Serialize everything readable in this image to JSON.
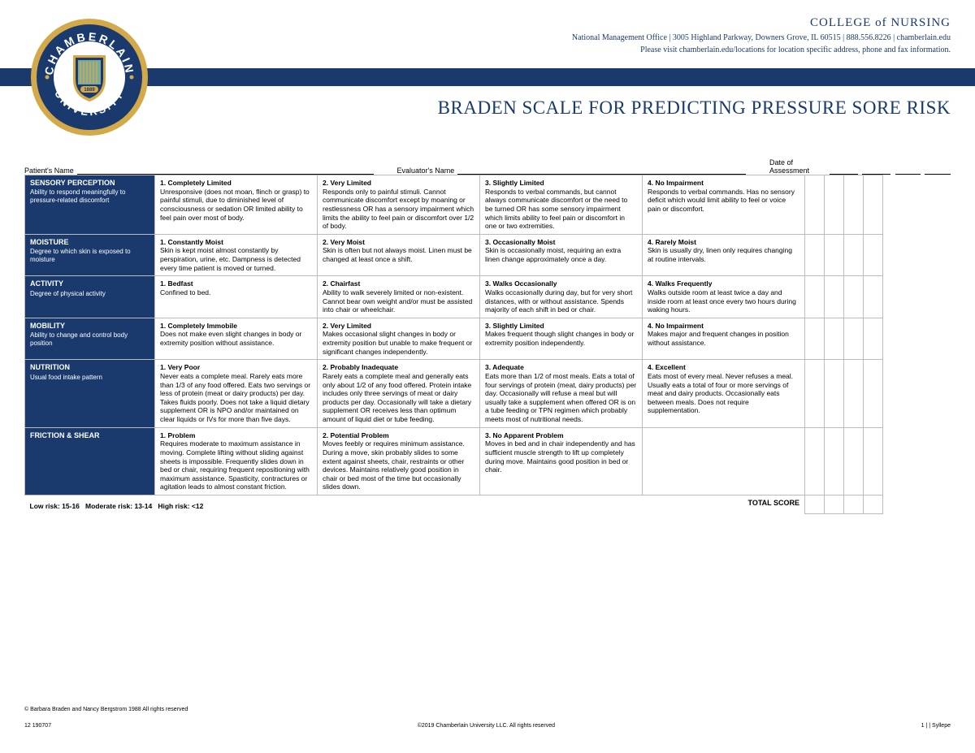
{
  "header": {
    "college": "COLLEGE of NURSING",
    "address": "National Management Office  |  3005 Highland Parkway, Downers Grove, IL 60515  |  888.556.8226  |  chamberlain.edu",
    "visit_prefix": "Please visit ",
    "visit_link": "chamberlain.edu/locations",
    "visit_suffix": " for location specific address, phone and fax information."
  },
  "logo": {
    "outer_ring_color": "#d4a94a",
    "inner_ring_color": "#1a3a6e",
    "shield_bg": "#ffffff",
    "shield_accent": "#1a3a6e",
    "shield_field": "#7aa9a0",
    "text_top": "CHAMBERLAIN",
    "text_bottom": "UNIVERSITY",
    "year": "1889"
  },
  "title": "BRADEN SCALE FOR PREDICTING PRESSURE SORE RISK",
  "fields": {
    "patient": "Patient's Name",
    "evaluator": "Evaluator's Name",
    "date": "Date of Assessment"
  },
  "colors": {
    "brand_blue": "#1a3a6e",
    "border_gray": "#bbbbbb",
    "white": "#ffffff"
  },
  "rows": [
    {
      "cat_title": "SENSORY PERCEPTION",
      "cat_sub": "Ability to respond meaningfully to pressure-related discomfort",
      "levels": [
        {
          "t": "1. Completely Limited",
          "d": "Unresponsive (does not moan, flinch or grasp) to painful stimuli, due to diminished level of consciousness or sedation OR limited ability to feel pain over most of body."
        },
        {
          "t": "2. Very Limited",
          "d": "Responds only to painful stimuli. Cannot communicate discomfort except by moaning or restlessness OR has a sensory impairment which limits the ability to feel pain or discomfort over 1/2 of body."
        },
        {
          "t": "3. Slightly Limited",
          "d": "Responds to verbal commands, but cannot always communicate discomfort or the need to be turned OR has some sensory impairment which limits ability to feel pain or discomfort in one or two extremities."
        },
        {
          "t": "4. No Impairment",
          "d": "Responds to verbal commands. Has no sensory deficit which would limit ability to feel or voice pain or discomfort."
        }
      ]
    },
    {
      "cat_title": "MOISTURE",
      "cat_sub": "Degree to which skin is exposed to moisture",
      "levels": [
        {
          "t": "1. Constantly Moist",
          "d": "Skin is kept moist almost constantly by perspiration, urine, etc. Dampness is detected every time patient is moved or turned."
        },
        {
          "t": "2. Very Moist",
          "d": "Skin is often but not always moist. Linen must be changed at least once a shift."
        },
        {
          "t": "3. Occasionally Moist",
          "d": "Skin is occasionally moist, requiring an extra linen change approximately once a day."
        },
        {
          "t": "4. Rarely Moist",
          "d": "Skin is usually dry, linen only requires changing at routine intervals."
        }
      ]
    },
    {
      "cat_title": "ACTIVITY",
      "cat_sub": "Degree of physical activity",
      "levels": [
        {
          "t": "1. Bedfast",
          "d": "Confined to bed."
        },
        {
          "t": "2. Chairfast",
          "d": "Ability to walk severely limited or non-existent. Cannot bear own weight and/or must be assisted into chair or wheelchair."
        },
        {
          "t": "3. Walks Occasionally",
          "d": "Walks occasionally during day, but for very short distances, with or without assistance. Spends majority of each shift in bed or chair."
        },
        {
          "t": "4. Walks Frequently",
          "d": "Walks outside room at least twice a day and inside room at least once every two hours during waking hours."
        }
      ]
    },
    {
      "cat_title": "MOBILITY",
      "cat_sub": "Ability to change and control body position",
      "levels": [
        {
          "t": "1. Completely Immobile",
          "d": "Does not make even slight changes in body or extremity position without assistance."
        },
        {
          "t": "2. Very Limited",
          "d": "Makes occasional slight changes in body or extremity position but unable to make frequent or significant changes independently."
        },
        {
          "t": "3. Slightly Limited",
          "d": "Makes frequent though slight changes in body or extremity position independently."
        },
        {
          "t": "4. No Impairment",
          "d": "Makes major and frequent changes in position without assistance."
        }
      ]
    },
    {
      "cat_title": "NUTRITION",
      "cat_sub": "Usual food intake pattern",
      "levels": [
        {
          "t": "1. Very Poor",
          "d": "Never eats a complete meal. Rarely eats more than 1/3 of any food offered. Eats two servings or less of protein (meat or dairy products) per day. Takes fluids poorly. Does not take a liquid dietary supplement OR is NPO and/or maintained on clear liquids or IVs for more than five days."
        },
        {
          "t": "2. Probably Inadequate",
          "d": "Rarely eats a complete meal and generally eats only about 1/2 of any food offered. Protein intake includes only three servings of meat or dairy products per day. Occasionally will take a dietary supplement OR receives less than optimum amount of liquid diet or tube feeding."
        },
        {
          "t": "3. Adequate",
          "d": "Eats more than 1/2 of most meals. Eats a total of four servings of protein (meat, dairy products) per day. Occasionally will refuse a meal but will usually take a supplement when offered OR is on a tube feeding or TPN regimen which probably meets most of nutritional needs."
        },
        {
          "t": "4. Excellent",
          "d": "Eats most of every meal. Never refuses a meal. Usually eats a total of four or more servings of meat and dairy products. Occasionally eats between meals. Does not require supplementation."
        }
      ]
    },
    {
      "cat_title": "FRICTION & SHEAR",
      "cat_sub": "",
      "levels": [
        {
          "t": "1. Problem",
          "d": "Requires moderate to maximum assistance in moving. Complete lifting without sliding against sheets is impossible. Frequently slides down in bed or chair, requiring frequent repositioning with maximum assistance. Spasticity, contractures or agitation leads to almost constant friction."
        },
        {
          "t": "2. Potential Problem",
          "d": "Moves feebly or requires minimum assistance. During a move, skin probably slides to some extent against sheets, chair, restraints or other devices. Maintains relatively good position in chair or bed most of the time but occasionally slides down."
        },
        {
          "t": "3. No Apparent Problem",
          "d": "Moves in bed and in chair independently and has sufficient muscle strength to lift up completely during move. Maintains good position in bed or chair."
        },
        {
          "t": "",
          "d": ""
        }
      ]
    }
  ],
  "risk": {
    "low": "Low risk: 15-16",
    "moderate": "Moderate risk: 13-14",
    "high": "High risk: <12"
  },
  "total_label": "TOTAL SCORE",
  "copyright_authors": "© Barbara Braden and Nancy Bergstrom 1988 All rights reserved",
  "footer": {
    "left": "12 190707",
    "center": "©2019 Chamberlain University LLC. All rights reserved",
    "right": "1 | | Syllepe"
  }
}
